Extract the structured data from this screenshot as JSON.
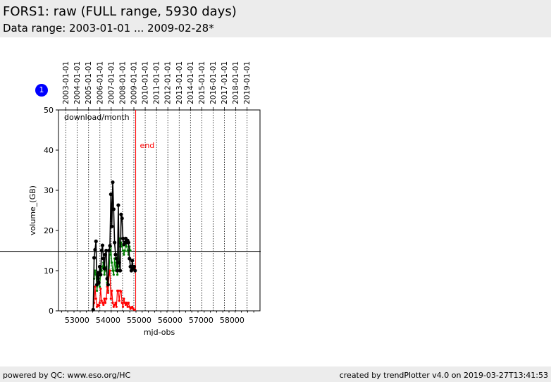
{
  "header": {
    "title": "FORS1: raw (FULL range, 5930 days)",
    "subtitle": "Data range: 2003-01-01 ... 2009-02-28*"
  },
  "badge": {
    "label": "1"
  },
  "footer": {
    "left": "powered by QC: www.eso.org/HC",
    "right": "created by trendPlotter v4.0 on 2019-03-27T13:41:53"
  },
  "colors": {
    "total": "#000000",
    "green": "#008000",
    "red": "#ff0000",
    "end_line": "#ff0000",
    "badge": "#0000ff",
    "header_bg": "#ececec"
  },
  "chart_data": {
    "type": "line",
    "annotation_label": "download/month",
    "end_marker": {
      "label": "end",
      "x": 54890
    },
    "reference_line": {
      "y": 14.8
    },
    "xlabel": "mjd-obs",
    "ylabel": "volume_(GB)",
    "xlim": [
      52400,
      58900
    ],
    "ylim": [
      0,
      50
    ],
    "x_ticks": [
      53000,
      54000,
      55000,
      56000,
      57000,
      58000
    ],
    "y_ticks": [
      0,
      10,
      20,
      30,
      40,
      50
    ],
    "top_axis": {
      "labels": [
        "2003-01-01",
        "2004-01-01",
        "2005-01-01",
        "2006-01-01",
        "2007-01-01",
        "2008-01-01",
        "2009-01-01",
        "2010-01-01",
        "2011-01-01",
        "2012-01-01",
        "2013-01-01",
        "2014-01-01",
        "2015-01-01",
        "2016-01-01",
        "2017-01-01",
        "2018-01-01",
        "2019-01-01"
      ],
      "mjd": [
        52640,
        53005,
        53371,
        53736,
        54101,
        54466,
        54832,
        55197,
        55562,
        55927,
        56293,
        56658,
        57023,
        57388,
        57754,
        58119,
        58484
      ]
    },
    "series": [
      {
        "name": "",
        "color": "#000000",
        "x": [
          53520,
          53550,
          53580,
          53610,
          53640,
          53670,
          53700,
          53730,
          53760,
          53790,
          53820,
          53850,
          53880,
          53910,
          53940,
          53970,
          54000,
          54030,
          54060,
          54090,
          54120,
          54150,
          54180,
          54210,
          54240,
          54270,
          54300,
          54330,
          54360,
          54390,
          54420,
          54450,
          54480,
          54510,
          54540,
          54570,
          54600,
          54630,
          54660,
          54690,
          54720,
          54750,
          54780,
          54810,
          54840,
          54870
        ],
        "values": [
          0.3,
          13.2,
          15.2,
          17.3,
          6.5,
          9.5,
          7,
          11,
          9,
          15,
          16.3,
          13,
          10.5,
          14,
          15,
          8,
          6.5,
          15,
          16.2,
          29,
          21,
          32,
          25.3,
          17,
          14,
          13,
          10,
          26.3,
          12,
          10,
          24,
          23,
          18,
          16.5,
          17,
          18,
          17,
          17.5,
          17,
          13,
          11,
          10,
          12.5,
          10.5,
          11,
          10
        ]
      },
      {
        "name": "",
        "color": "#008000",
        "x": [
          53550,
          53580,
          53610,
          53640,
          53670,
          53700,
          53730,
          53760,
          53790,
          53820,
          53850,
          53880,
          53910,
          53940,
          53970,
          54000,
          54030,
          54060,
          54090,
          54120,
          54150,
          54180,
          54210,
          54240,
          54270,
          54300,
          54330,
          54360,
          54390,
          54420,
          54450,
          54480,
          54510,
          54540,
          54570,
          54600,
          54630,
          54660,
          54690,
          54720
        ],
        "values": [
          8,
          10,
          9,
          5,
          7,
          8,
          6,
          9,
          10,
          11,
          12,
          9,
          10,
          11,
          7,
          5,
          9,
          14,
          16,
          12,
          10,
          9,
          13,
          10,
          12,
          9,
          11,
          18,
          16,
          17,
          16,
          15,
          14,
          15,
          17,
          16,
          15,
          14,
          16,
          15
        ]
      },
      {
        "name": "",
        "color": "#ff0000",
        "x": [
          53520,
          53550,
          53580,
          53610,
          53640,
          53670,
          53700,
          53730,
          53760,
          53790,
          53820,
          53850,
          53880,
          53910,
          53940,
          53970,
          54000,
          54030,
          54060,
          54090,
          54120,
          54150,
          54180,
          54210,
          54240,
          54270,
          54300,
          54330,
          54360,
          54390,
          54420,
          54450,
          54480,
          54510,
          54540,
          54570,
          54600,
          54630,
          54660,
          54690,
          54720,
          54750,
          54780,
          54810,
          54840
        ],
        "values": [
          0.3,
          2,
          6,
          3,
          1,
          1.5,
          1.2,
          2,
          5.5,
          2.5,
          2,
          1.5,
          3,
          2,
          3,
          6,
          4.5,
          9,
          10,
          3,
          5,
          2,
          1,
          1.5,
          2,
          1,
          5,
          5,
          2.5,
          5,
          4.8,
          2,
          1,
          3,
          2,
          1.5,
          2,
          1,
          2,
          1,
          0.5,
          0.8,
          1,
          0.5,
          0.3
        ]
      }
    ]
  }
}
